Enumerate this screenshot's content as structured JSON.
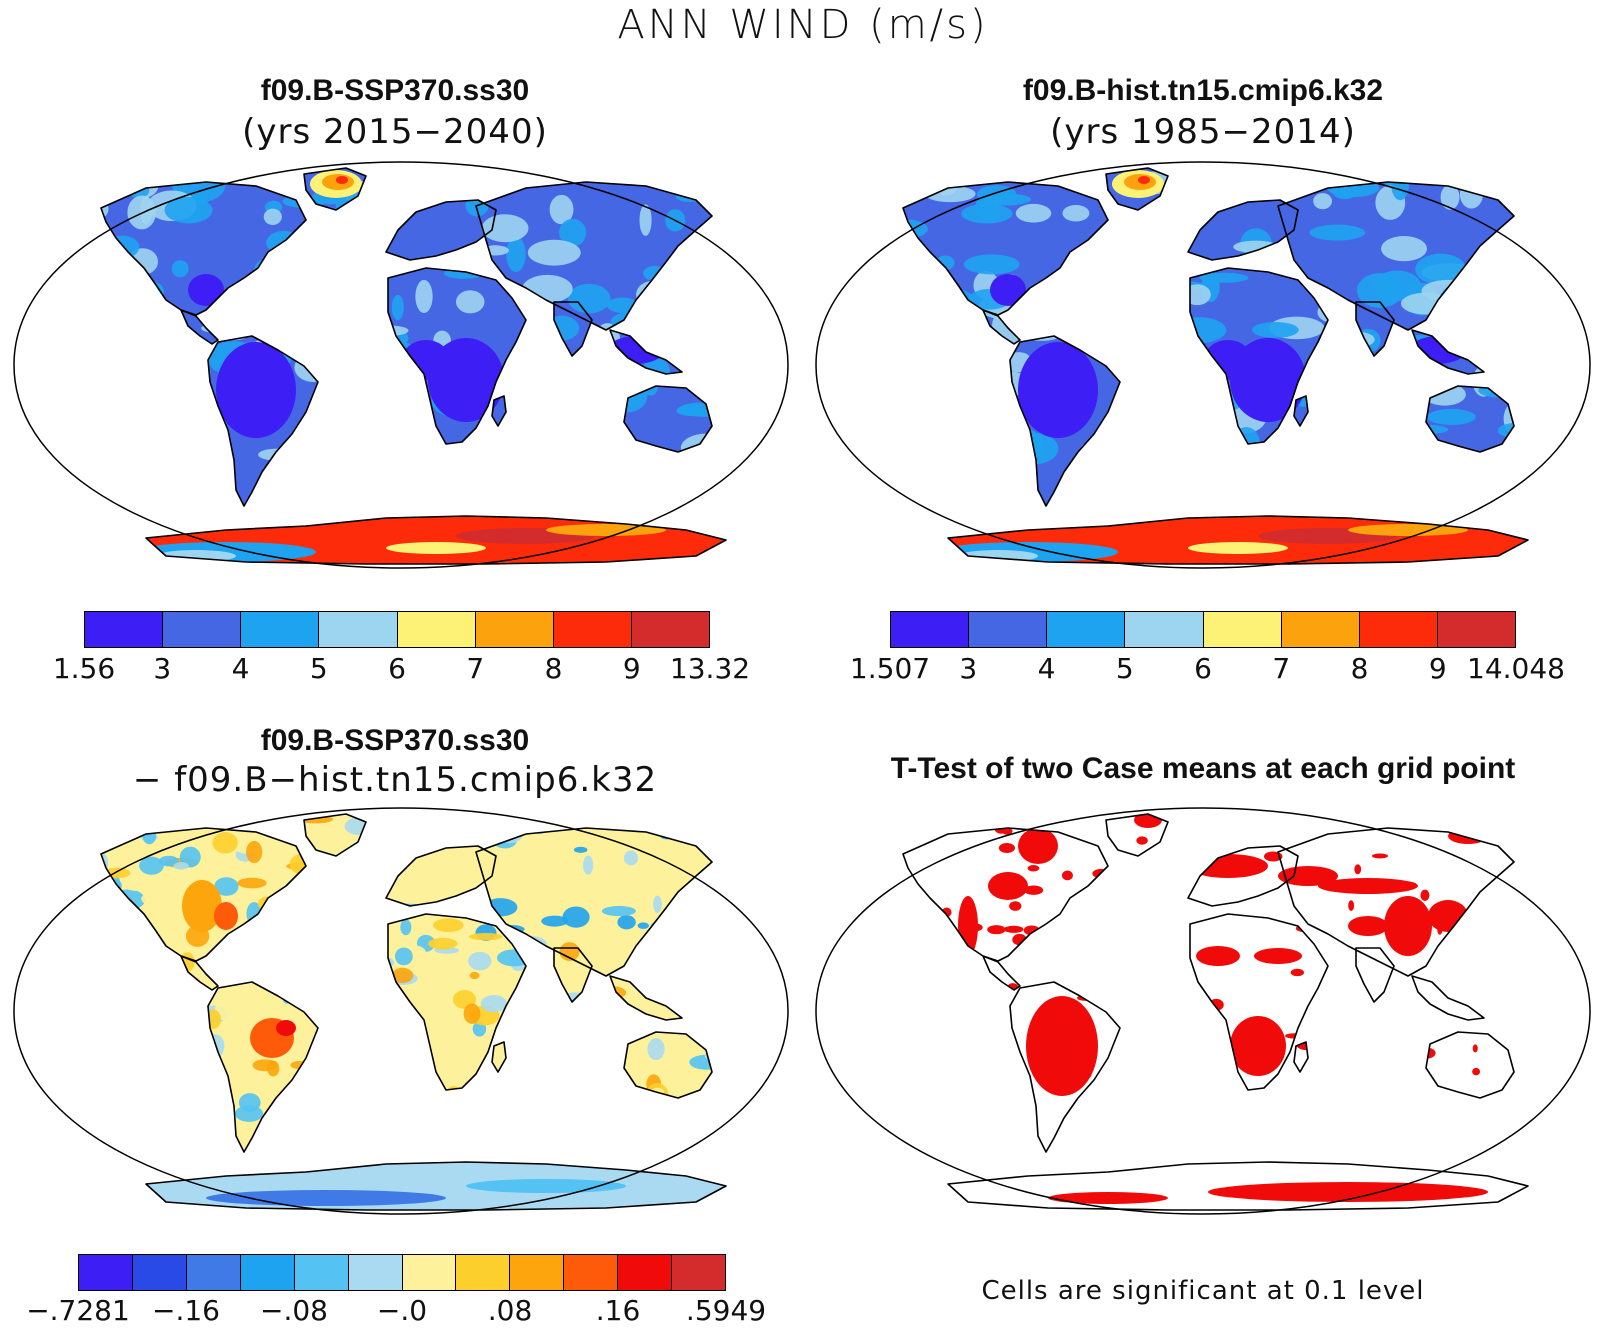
{
  "main_title": "ANN WIND (m/s)",
  "panels": [
    {
      "title": "f09.B-SSP370.ss30",
      "subtitle": "(yrs 2015−2040)",
      "type": "field",
      "colorbar": {
        "colors": [
          "#3d1ef5",
          "#4567e4",
          "#1ea3f0",
          "#9dd4f0",
          "#fdf176",
          "#fca20c",
          "#fd2b0a",
          "#d42c2c"
        ],
        "labels": [
          "1.56",
          "3",
          "4",
          "5",
          "6",
          "7",
          "8",
          "9",
          "13.32"
        ]
      }
    },
    {
      "title": "f09.B-hist.tn15.cmip6.k32",
      "subtitle": "(yrs 1985−2014)",
      "type": "field",
      "colorbar": {
        "colors": [
          "#3d1ef5",
          "#4567e4",
          "#1ea3f0",
          "#9dd4f0",
          "#fdf176",
          "#fca20c",
          "#fd2b0a",
          "#d42c2c"
        ],
        "labels": [
          "1.507",
          "3",
          "4",
          "5",
          "6",
          "7",
          "8",
          "9",
          "14.048"
        ]
      }
    },
    {
      "title": "f09.B-SSP370.ss30",
      "subtitle": "− f09.B−hist.tn15.cmip6.k32",
      "type": "difference",
      "colorbar": {
        "colors": [
          "#3d1ef5",
          "#2a4ae8",
          "#3f7ae6",
          "#1ea3f0",
          "#54c3f3",
          "#a9daf2",
          "#fdf29b",
          "#fdcf2d",
          "#fca50c",
          "#fd5a0a",
          "#f10a0a",
          "#d42c2c"
        ],
        "labels": [
          "−.7281",
          "−.16",
          "−.08",
          "−.0",
          ".08",
          ".16",
          ".5949"
        ]
      }
    },
    {
      "title": "T-Test of two Case means at each grid point",
      "type": "ttest",
      "note": "Cells are significant at 0.1 level",
      "colors": {
        "significant": "#f00a0a"
      }
    }
  ]
}
